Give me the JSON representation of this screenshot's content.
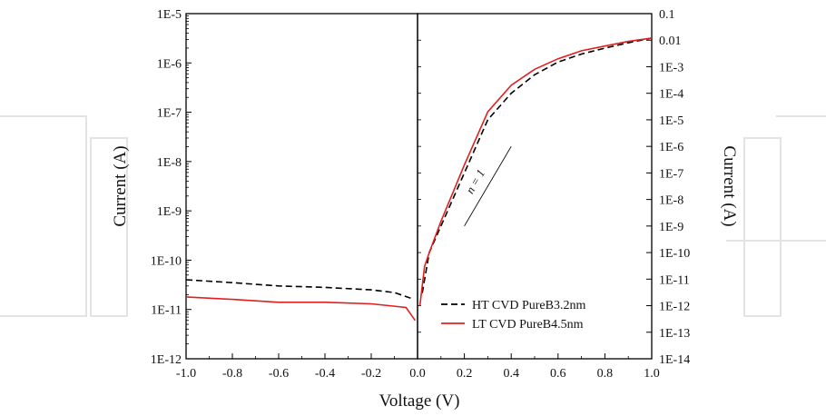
{
  "chart_data": {
    "type": "line",
    "xlabel": "Voltage (V)",
    "left_panel": {
      "ylabel": "Current (A)",
      "xlim": [
        -1.0,
        0.0
      ],
      "ylim_exp": [
        -12,
        -5
      ],
      "scale": "log",
      "x_ticks": [
        "-1.0",
        "-0.8",
        "-0.6",
        "-0.4",
        "-0.2",
        "0.0"
      ],
      "y_ticks": [
        "1E-12",
        "1E-11",
        "1E-10",
        "1E-9",
        "1E-8",
        "1E-7",
        "1E-6",
        "1E-5"
      ]
    },
    "right_panel": {
      "ylabel": "Current (A)",
      "xlim": [
        0.0,
        1.0
      ],
      "ylim_exp": [
        -14,
        -1
      ],
      "scale": "log",
      "x_ticks": [
        "0.0",
        "0.2",
        "0.4",
        "0.6",
        "0.8",
        "1.0"
      ],
      "y_ticks": [
        "1E-14",
        "1E-13",
        "1E-12",
        "1E-11",
        "1E-10",
        "1E-9",
        "1E-8",
        "1E-7",
        "1E-6",
        "1E-5",
        "1E-4",
        "1E-3",
        "0.01",
        "0.1"
      ]
    },
    "series": [
      {
        "name": "HT CVD PureB3.2nm",
        "style": "dashed",
        "color": "#000000",
        "reverse": [
          [
            -1.0,
            4e-11
          ],
          [
            -0.8,
            3.5e-11
          ],
          [
            -0.6,
            3e-11
          ],
          [
            -0.4,
            2.8e-11
          ],
          [
            -0.2,
            2.5e-11
          ],
          [
            -0.1,
            2.2e-11
          ],
          [
            -0.03,
            1.7e-11
          ]
        ],
        "forward": [
          [
            0.02,
            3e-12
          ],
          [
            0.05,
            1e-10
          ],
          [
            0.1,
            1e-09
          ],
          [
            0.2,
            1e-07
          ],
          [
            0.3,
            1e-05
          ],
          [
            0.4,
            0.0001
          ],
          [
            0.5,
            0.0005
          ],
          [
            0.6,
            0.0015
          ],
          [
            0.7,
            0.003
          ],
          [
            0.8,
            0.005
          ],
          [
            0.9,
            0.008
          ],
          [
            1.0,
            0.012
          ]
        ]
      },
      {
        "name": "LT CVD PureB4.5nm",
        "style": "solid",
        "color": "#e02020",
        "reverse": [
          [
            -1.0,
            1.8e-11
          ],
          [
            -0.8,
            1.6e-11
          ],
          [
            -0.6,
            1.4e-11
          ],
          [
            -0.4,
            1.4e-11
          ],
          [
            -0.2,
            1.3e-11
          ],
          [
            -0.05,
            1.1e-11
          ],
          [
            -0.01,
            6e-12
          ]
        ],
        "forward": [
          [
            0.01,
            1e-12
          ],
          [
            0.03,
            3e-11
          ],
          [
            0.05,
            1e-10
          ],
          [
            0.1,
            1.5e-09
          ],
          [
            0.2,
            2e-07
          ],
          [
            0.3,
            2e-05
          ],
          [
            0.4,
            0.0002
          ],
          [
            0.5,
            0.0008
          ],
          [
            0.6,
            0.002
          ],
          [
            0.7,
            0.004
          ],
          [
            0.8,
            0.006
          ],
          [
            0.9,
            0.009
          ],
          [
            1.0,
            0.012
          ]
        ]
      }
    ],
    "annotations": [
      {
        "text": "n = 1",
        "line": [
          [
            0.2,
            1e-09
          ],
          [
            0.4,
            1e-06
          ]
        ]
      }
    ],
    "legend_placement": "bottom-right"
  }
}
